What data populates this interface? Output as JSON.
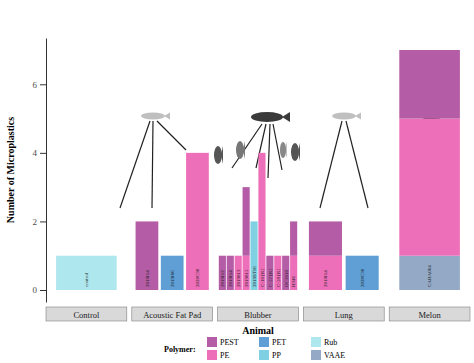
{
  "chart_data": {
    "type": "bar",
    "stacked": true,
    "legend": "bottom",
    "x_label": "Animal",
    "y_label": "Number of Microplastics",
    "legend_title": "Polymer:",
    "ylim": [
      -0.35,
      7.35
    ],
    "yticks": [
      0,
      2,
      4,
      6
    ],
    "panels": [
      {
        "label": "Control",
        "categories": [
          "control"
        ]
      },
      {
        "label": "Acoustic Fat Pad",
        "categories": [
          "2019I14",
          "2019I06",
          "2020C30"
        ]
      },
      {
        "label": "Blubber",
        "categories": [
          "2019I12",
          "2019I14",
          "2019013",
          "2019015",
          "2019ST16",
          "C-10 [K]",
          "C-57 [K]",
          "C-58 [K]",
          "OC2010",
          "H346"
        ]
      },
      {
        "label": "Lung",
        "categories": [
          "2019I14",
          "2020C30"
        ]
      },
      {
        "label": "Melon",
        "categories": [
          "CAHA064"
        ]
      }
    ],
    "series": [
      {
        "name": "PEST",
        "color": "#b45ca5",
        "values": [
          0,
          2,
          0,
          0,
          1,
          1,
          0,
          2,
          0,
          0,
          1,
          0,
          1,
          1,
          1,
          0,
          2
        ]
      },
      {
        "name": "PE",
        "color": "#ee6fb9",
        "values": [
          0,
          0,
          0,
          4,
          0,
          0,
          1,
          1,
          0,
          4,
          0,
          1,
          0,
          1,
          1,
          0,
          4
        ]
      },
      {
        "name": "PET",
        "color": "#5f9fd6",
        "values": [
          0,
          0,
          1,
          0,
          0,
          0,
          0,
          0,
          0,
          0,
          0,
          0,
          0,
          0,
          0,
          1,
          0
        ]
      },
      {
        "name": "PP",
        "color": "#7fd0e2",
        "values": [
          0,
          0,
          0,
          0,
          0,
          0,
          0,
          0,
          2,
          0,
          0,
          0,
          0,
          0,
          0,
          0,
          0
        ]
      },
      {
        "name": "Rub",
        "color": "#aee7ee",
        "values": [
          1,
          0,
          0,
          0,
          0,
          0,
          0,
          0,
          0,
          0,
          0,
          0,
          0,
          0,
          0,
          0,
          0
        ]
      },
      {
        "name": "VAAE",
        "color": "#93a9c6",
        "values": [
          0,
          0,
          0,
          0,
          0,
          0,
          0,
          0,
          0,
          0,
          0,
          0,
          0,
          0,
          0,
          0,
          1
        ]
      }
    ]
  }
}
